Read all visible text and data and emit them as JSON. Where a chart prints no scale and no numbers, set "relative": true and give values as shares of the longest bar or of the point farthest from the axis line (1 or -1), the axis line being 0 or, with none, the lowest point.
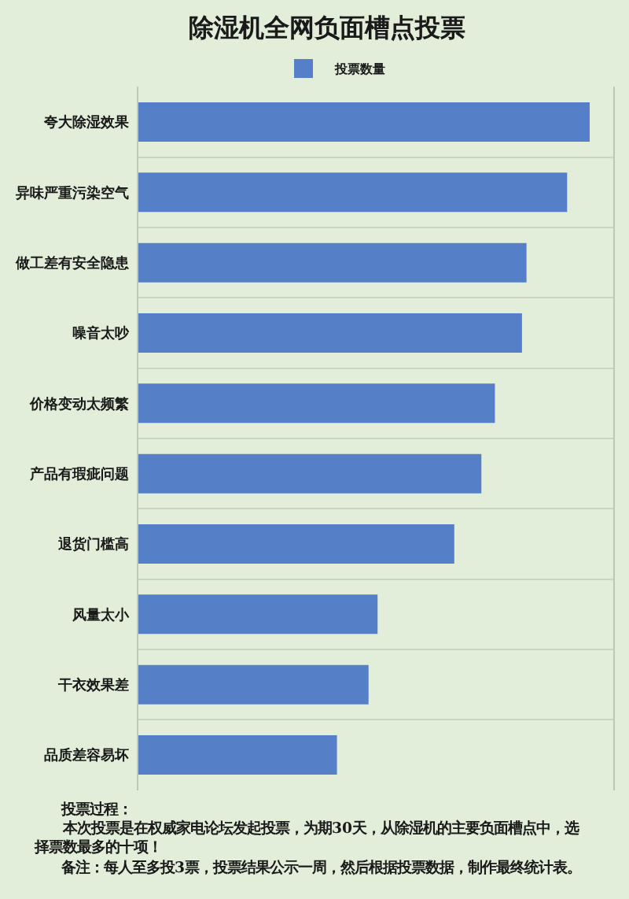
{
  "chart_data": {
    "type": "bar",
    "orientation": "horizontal",
    "relative": true,
    "title": "除湿机全网负面槽点投票",
    "categories": [
      "夸大除湿效果",
      "异味严重污染空气",
      "做工差有安全隐患",
      "噪音太吵",
      "价格变动太频繁",
      "产品有瑕疵问题",
      "退货门槛高",
      "风量太小",
      "干衣效果差",
      "品质差容易坏"
    ],
    "series": [
      {
        "name": "投票数量",
        "color": "#5580c8",
        "values": [
          1,
          0.95,
          0.86,
          0.85,
          0.79,
          0.76,
          0.7,
          0.53,
          0.51,
          0.44
        ]
      }
    ],
    "grid": "y",
    "legend": "top",
    "annotations": [
      "投票过程：",
      "本次投票是在权威家电论坛发起投票，为期30天，从除湿机的主要负面槽点中，选择票数最多的十项！",
      "备注：每人至多投3票，投票结果公示一周，然后根据投票数据，制作最终统计表。"
    ]
  }
}
